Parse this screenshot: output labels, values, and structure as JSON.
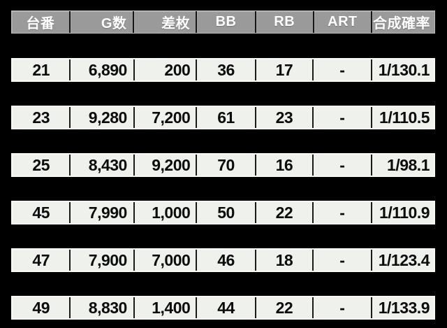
{
  "colors": {
    "background": "#000000",
    "header_bg": "#9a9a9a",
    "header_text": "#ffffff",
    "row_bg": "#eff1ec",
    "row_border": "#f9faf6",
    "cell_divider": "#1a1a1a",
    "row_text": "#0c0c0c"
  },
  "table": {
    "header": {
      "cells": [
        "台番",
        "G数",
        "差枚",
        "BB",
        "RB",
        "ART",
        "合成確率"
      ]
    },
    "rows": [
      [
        "21",
        "6,890",
        "200",
        "36",
        "17",
        "-",
        "1/130.1"
      ],
      [
        "23",
        "9,280",
        "7,200",
        "61",
        "23",
        "-",
        "1/110.5"
      ],
      [
        "25",
        "8,430",
        "9,200",
        "70",
        "16",
        "-",
        "1/98.1"
      ],
      [
        "45",
        "7,990",
        "1,000",
        "50",
        "22",
        "-",
        "1/110.9"
      ],
      [
        "47",
        "7,900",
        "7,000",
        "46",
        "18",
        "-",
        "1/123.4"
      ],
      [
        "49",
        "8,830",
        "1,400",
        "44",
        "22",
        "-",
        "1/133.9"
      ]
    ]
  },
  "chart_data": {
    "type": "table",
    "title": "",
    "columns": [
      "台番",
      "G数",
      "差枚",
      "BB",
      "RB",
      "ART",
      "合成確率"
    ],
    "rows": [
      {
        "台番": 21,
        "G数": 6890,
        "差枚": 200,
        "BB": 36,
        "RB": 17,
        "ART": null,
        "合成確率": "1/130.1"
      },
      {
        "台番": 23,
        "G数": 9280,
        "差枚": 7200,
        "BB": 61,
        "RB": 23,
        "ART": null,
        "合成確率": "1/110.5"
      },
      {
        "台番": 25,
        "G数": 8430,
        "差枚": 9200,
        "BB": 70,
        "RB": 16,
        "ART": null,
        "合成確率": "1/98.1"
      },
      {
        "台番": 45,
        "G数": 7990,
        "差枚": 1000,
        "BB": 50,
        "RB": 22,
        "ART": null,
        "合成確率": "1/110.9"
      },
      {
        "台番": 47,
        "G数": 7900,
        "差枚": 7000,
        "BB": 46,
        "RB": 18,
        "ART": null,
        "合成確率": "1/123.4"
      },
      {
        "台番": 49,
        "G数": 8830,
        "差枚": 1400,
        "BB": 44,
        "RB": 22,
        "ART": null,
        "合成確率": "1/133.9"
      }
    ]
  }
}
